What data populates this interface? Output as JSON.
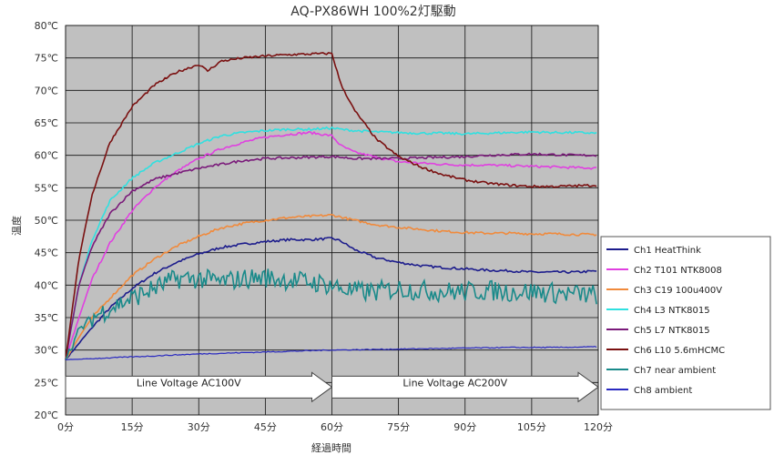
{
  "chart_data": {
    "type": "line",
    "title": "AQ-PX86WH 100%2灯駆動",
    "xlabel": "経過時間",
    "ylabel": "温度",
    "xlim": [
      0,
      120
    ],
    "ylim": [
      20,
      80
    ],
    "x_ticks": [
      "0分",
      "15分",
      "30分",
      "45分",
      "60分",
      "75分",
      "90分",
      "105分",
      "120分"
    ],
    "y_ticks": [
      "20℃",
      "25℃",
      "30℃",
      "35℃",
      "40℃",
      "45℃",
      "50℃",
      "55℃",
      "60℃",
      "65℃",
      "70℃",
      "75℃",
      "80℃"
    ],
    "grid": true,
    "legend_position": "right",
    "annotations": [
      {
        "text": "Line Voltage AC100V",
        "x_start": 0,
        "x_end": 60,
        "y": 24.3
      },
      {
        "text": "Line Voltage AC200V",
        "x_start": 60,
        "x_end": 120,
        "y": 24.3
      }
    ],
    "series": [
      {
        "name": "Ch1 HeatThink",
        "color": "#1c1c8c",
        "x": [
          0,
          3,
          6,
          10,
          15,
          20,
          25,
          30,
          35,
          40,
          45,
          50,
          55,
          60,
          62,
          65,
          70,
          75,
          80,
          85,
          90,
          95,
          100,
          105,
          110,
          115,
          120
        ],
        "y": [
          28.5,
          31,
          33.5,
          36.5,
          39.5,
          41.8,
          43.5,
          44.8,
          45.8,
          46.3,
          46.7,
          47,
          47,
          47.2,
          46.8,
          45.5,
          44.2,
          43.5,
          43,
          42.7,
          42.5,
          42.3,
          42.2,
          42,
          42,
          42,
          42.2
        ]
      },
      {
        "name": "Ch2 T101 NTK8008",
        "color": "#e040e0",
        "x": [
          0,
          3,
          6,
          10,
          15,
          20,
          25,
          30,
          35,
          40,
          45,
          50,
          55,
          60,
          62,
          65,
          70,
          75,
          80,
          85,
          90,
          95,
          100,
          105,
          110,
          115,
          120
        ],
        "y": [
          28.5,
          35,
          41,
          46.5,
          51.5,
          55,
          57.5,
          59.5,
          61,
          62,
          62.8,
          63.2,
          63.5,
          63,
          61.5,
          60.5,
          59.7,
          59,
          58.8,
          58.6,
          58.5,
          58.5,
          58.4,
          58.3,
          58.2,
          58.1,
          58
        ]
      },
      {
        "name": "Ch3 C19 100u400V",
        "color": "#f08a3c",
        "x": [
          0,
          3,
          6,
          10,
          15,
          20,
          25,
          30,
          35,
          40,
          45,
          50,
          55,
          60,
          62,
          65,
          70,
          75,
          80,
          85,
          90,
          95,
          100,
          105,
          110,
          115,
          120
        ],
        "y": [
          28.5,
          32,
          35,
          38,
          41.5,
          44,
          46,
          47.5,
          48.8,
          49.5,
          50,
          50.4,
          50.6,
          50.8,
          50.5,
          50,
          49.3,
          48.9,
          48.6,
          48.3,
          48.1,
          48,
          48,
          47.9,
          47.9,
          47.8,
          47.8
        ]
      },
      {
        "name": "Ch4 L3 NTK8015",
        "color": "#30e0e0",
        "x": [
          0,
          3,
          6,
          10,
          15,
          20,
          25,
          30,
          35,
          40,
          45,
          50,
          55,
          60,
          62,
          65,
          70,
          75,
          80,
          85,
          90,
          95,
          100,
          105,
          110,
          115,
          120
        ],
        "y": [
          28.5,
          40,
          47,
          53,
          56.5,
          58.8,
          60.3,
          61.8,
          63,
          63.5,
          63.8,
          64,
          64,
          64.2,
          64,
          63.8,
          63.6,
          63.5,
          63.4,
          63.4,
          63.3,
          63.4,
          63.5,
          63.6,
          63.5,
          63.5,
          63.4
        ]
      },
      {
        "name": "Ch5 L7 NTK8015",
        "color": "#7a1a7a",
        "x": [
          0,
          3,
          6,
          10,
          15,
          20,
          25,
          30,
          35,
          40,
          45,
          50,
          55,
          60,
          62,
          65,
          70,
          75,
          80,
          85,
          90,
          95,
          100,
          105,
          110,
          115,
          120
        ],
        "y": [
          28.5,
          40,
          46,
          51,
          54.5,
          56.3,
          57.2,
          58,
          58.6,
          59.2,
          59.5,
          59.6,
          59.7,
          59.8,
          59.7,
          59.5,
          59.5,
          59.5,
          59.6,
          59.7,
          59.8,
          60,
          60.1,
          60.2,
          60.1,
          60,
          60
        ]
      },
      {
        "name": "Ch6 L10 5.6mHCMC",
        "color": "#7a1010",
        "x": [
          0,
          3,
          6,
          10,
          15,
          20,
          25,
          30,
          32,
          35,
          40,
          45,
          50,
          55,
          60,
          62,
          65,
          70,
          75,
          80,
          85,
          90,
          95,
          100,
          105,
          110,
          115,
          120
        ],
        "y": [
          28.5,
          44,
          54,
          62,
          67.5,
          70.8,
          72.8,
          74,
          73,
          74.5,
          75,
          75.3,
          75.5,
          75.6,
          75.7,
          71,
          67,
          62.5,
          59.8,
          58.2,
          57,
          56.2,
          55.7,
          55.4,
          55.2,
          55.2,
          55.3,
          55.4
        ]
      },
      {
        "name": "Ch7 near ambient",
        "color": "#1a8a8a",
        "noise": 3.2,
        "x": [
          0,
          3,
          6,
          10,
          15,
          20,
          25,
          30,
          35,
          40,
          45,
          50,
          55,
          60,
          62,
          65,
          70,
          75,
          80,
          85,
          90,
          95,
          100,
          105,
          110,
          115,
          120
        ],
        "y": [
          28.5,
          33,
          35,
          36.5,
          38,
          39.5,
          41,
          41,
          40.5,
          41,
          41.2,
          40.8,
          40.5,
          40,
          39.5,
          39,
          39,
          39.5,
          39.2,
          39,
          39,
          39.2,
          39,
          39,
          38.8,
          38.6,
          38.5
        ]
      },
      {
        "name": "Ch8 ambient",
        "color": "#2a2ac0",
        "x": [
          0,
          10,
          20,
          30,
          40,
          50,
          60,
          70,
          80,
          90,
          100,
          110,
          120
        ],
        "y": [
          28.5,
          28.8,
          29.1,
          29.4,
          29.6,
          29.8,
          30,
          30.1,
          30.2,
          30.3,
          30.4,
          30.4,
          30.5
        ]
      }
    ]
  }
}
